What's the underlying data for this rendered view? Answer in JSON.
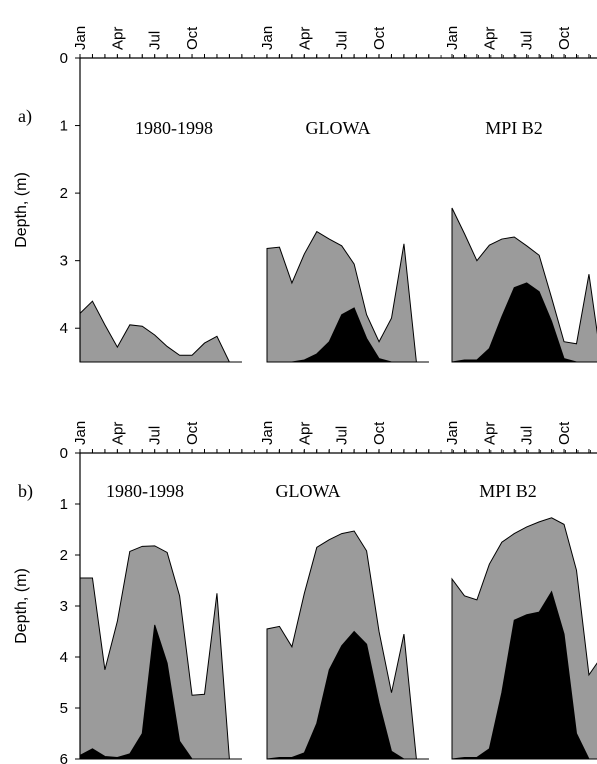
{
  "chart_data": [
    {
      "type": "area",
      "panel_label": "a)",
      "ylabel": "Depth, (m)",
      "ylim": [
        0,
        4.5
      ],
      "y_ticks": [
        0,
        1,
        2,
        3,
        4
      ],
      "y_inverted": true,
      "month_tick_labels": [
        "Jan",
        "Apr",
        "Jul",
        "Oct"
      ],
      "scenarios": [
        {
          "name": "1980-1998",
          "months": [
            1,
            2,
            3,
            4,
            5,
            6,
            7,
            8,
            9,
            10,
            11,
            12,
            13,
            14
          ],
          "series": [
            {
              "name": "",
              "color": "#9b9b9b",
              "values": [
                3.78,
                3.6,
                3.95,
                4.28,
                3.95,
                3.97,
                4.1,
                4.27,
                4.4,
                4.4,
                4.22,
                4.12,
                4.5,
                4.5
              ]
            },
            {
              "name": "",
              "color": "#000000",
              "values": [
                4.5,
                4.5,
                4.5,
                4.5,
                4.5,
                4.5,
                4.5,
                4.5,
                4.5,
                4.5,
                4.5,
                4.5,
                4.5,
                4.5
              ]
            }
          ]
        },
        {
          "name": "GLOWA",
          "months": [
            1,
            2,
            3,
            4,
            5,
            6,
            7,
            8,
            9,
            10,
            11,
            12,
            13,
            14
          ],
          "series": [
            {
              "name": "",
              "color": "#9b9b9b",
              "values": [
                2.82,
                2.8,
                3.33,
                2.9,
                2.57,
                2.68,
                2.78,
                3.05,
                3.8,
                4.2,
                3.85,
                2.75,
                4.5,
                4.5
              ]
            },
            {
              "name": "",
              "color": "#000000",
              "values": [
                4.5,
                4.5,
                4.5,
                4.47,
                4.38,
                4.2,
                3.8,
                3.7,
                4.15,
                4.45,
                4.5,
                4.5,
                4.5,
                4.5
              ]
            }
          ]
        },
        {
          "name": "MPI B2",
          "months": [
            1,
            2,
            3,
            4,
            5,
            6,
            7,
            8,
            9,
            10,
            11,
            12,
            13
          ],
          "series": [
            {
              "name": "",
              "color": "#9b9b9b",
              "values": [
                2.22,
                2.6,
                3.0,
                2.77,
                2.68,
                2.65,
                2.78,
                2.92,
                3.55,
                4.2,
                4.23,
                3.2,
                4.5
              ]
            },
            {
              "name": "",
              "color": "#000000",
              "values": [
                4.5,
                4.47,
                4.47,
                4.3,
                3.83,
                3.4,
                3.33,
                3.46,
                3.9,
                4.45,
                4.5,
                4.5,
                4.5
              ]
            }
          ]
        }
      ]
    },
    {
      "type": "area",
      "panel_label": "b)",
      "ylabel": "Depth, (m)",
      "ylim": [
        0,
        6
      ],
      "y_ticks": [
        0,
        1,
        2,
        3,
        4,
        5,
        6
      ],
      "y_inverted": true,
      "month_tick_labels": [
        "Jan",
        "Apr",
        "Jul",
        "Oct"
      ],
      "scenarios": [
        {
          "name": "1980-1998",
          "months": [
            1,
            2,
            3,
            4,
            5,
            6,
            7,
            8,
            9,
            10,
            11,
            12,
            13,
            14
          ],
          "series": [
            {
              "name": "",
              "color": "#9b9b9b",
              "values": [
                2.45,
                2.45,
                4.25,
                3.3,
                1.93,
                1.83,
                1.82,
                1.95,
                2.8,
                4.75,
                4.73,
                2.75,
                6.0,
                6.0
              ]
            },
            {
              "name": "",
              "color": "#000000",
              "values": [
                5.93,
                5.8,
                5.95,
                5.97,
                5.9,
                5.5,
                3.37,
                4.12,
                5.65,
                6.0,
                6.0,
                6.0,
                6.0,
                6.0
              ]
            }
          ]
        },
        {
          "name": "GLOWA",
          "months": [
            1,
            2,
            3,
            4,
            5,
            6,
            7,
            8,
            9,
            10,
            11,
            12,
            13,
            14
          ],
          "series": [
            {
              "name": "",
              "color": "#9b9b9b",
              "values": [
                3.45,
                3.4,
                3.8,
                2.75,
                1.85,
                1.7,
                1.58,
                1.53,
                1.92,
                3.5,
                4.7,
                3.55,
                6.0,
                6.0
              ]
            },
            {
              "name": "",
              "color": "#000000",
              "values": [
                6.0,
                5.97,
                5.97,
                5.88,
                5.3,
                4.25,
                3.78,
                3.5,
                3.75,
                4.9,
                5.85,
                6.0,
                6.0,
                6.0
              ]
            }
          ]
        },
        {
          "name": "MPI B2",
          "months": [
            1,
            2,
            3,
            4,
            5,
            6,
            7,
            8,
            9,
            10,
            11,
            12,
            13
          ],
          "series": [
            {
              "name": "",
              "color": "#9b9b9b",
              "values": [
                2.47,
                2.8,
                2.88,
                2.18,
                1.75,
                1.58,
                1.45,
                1.35,
                1.27,
                1.4,
                2.3,
                4.35,
                4.0
              ]
            },
            {
              "name": "",
              "color": "#000000",
              "values": [
                6.0,
                5.97,
                5.97,
                5.8,
                4.7,
                3.28,
                3.17,
                3.12,
                2.72,
                3.55,
                5.5,
                6.0,
                6.0
              ]
            }
          ]
        }
      ]
    }
  ]
}
